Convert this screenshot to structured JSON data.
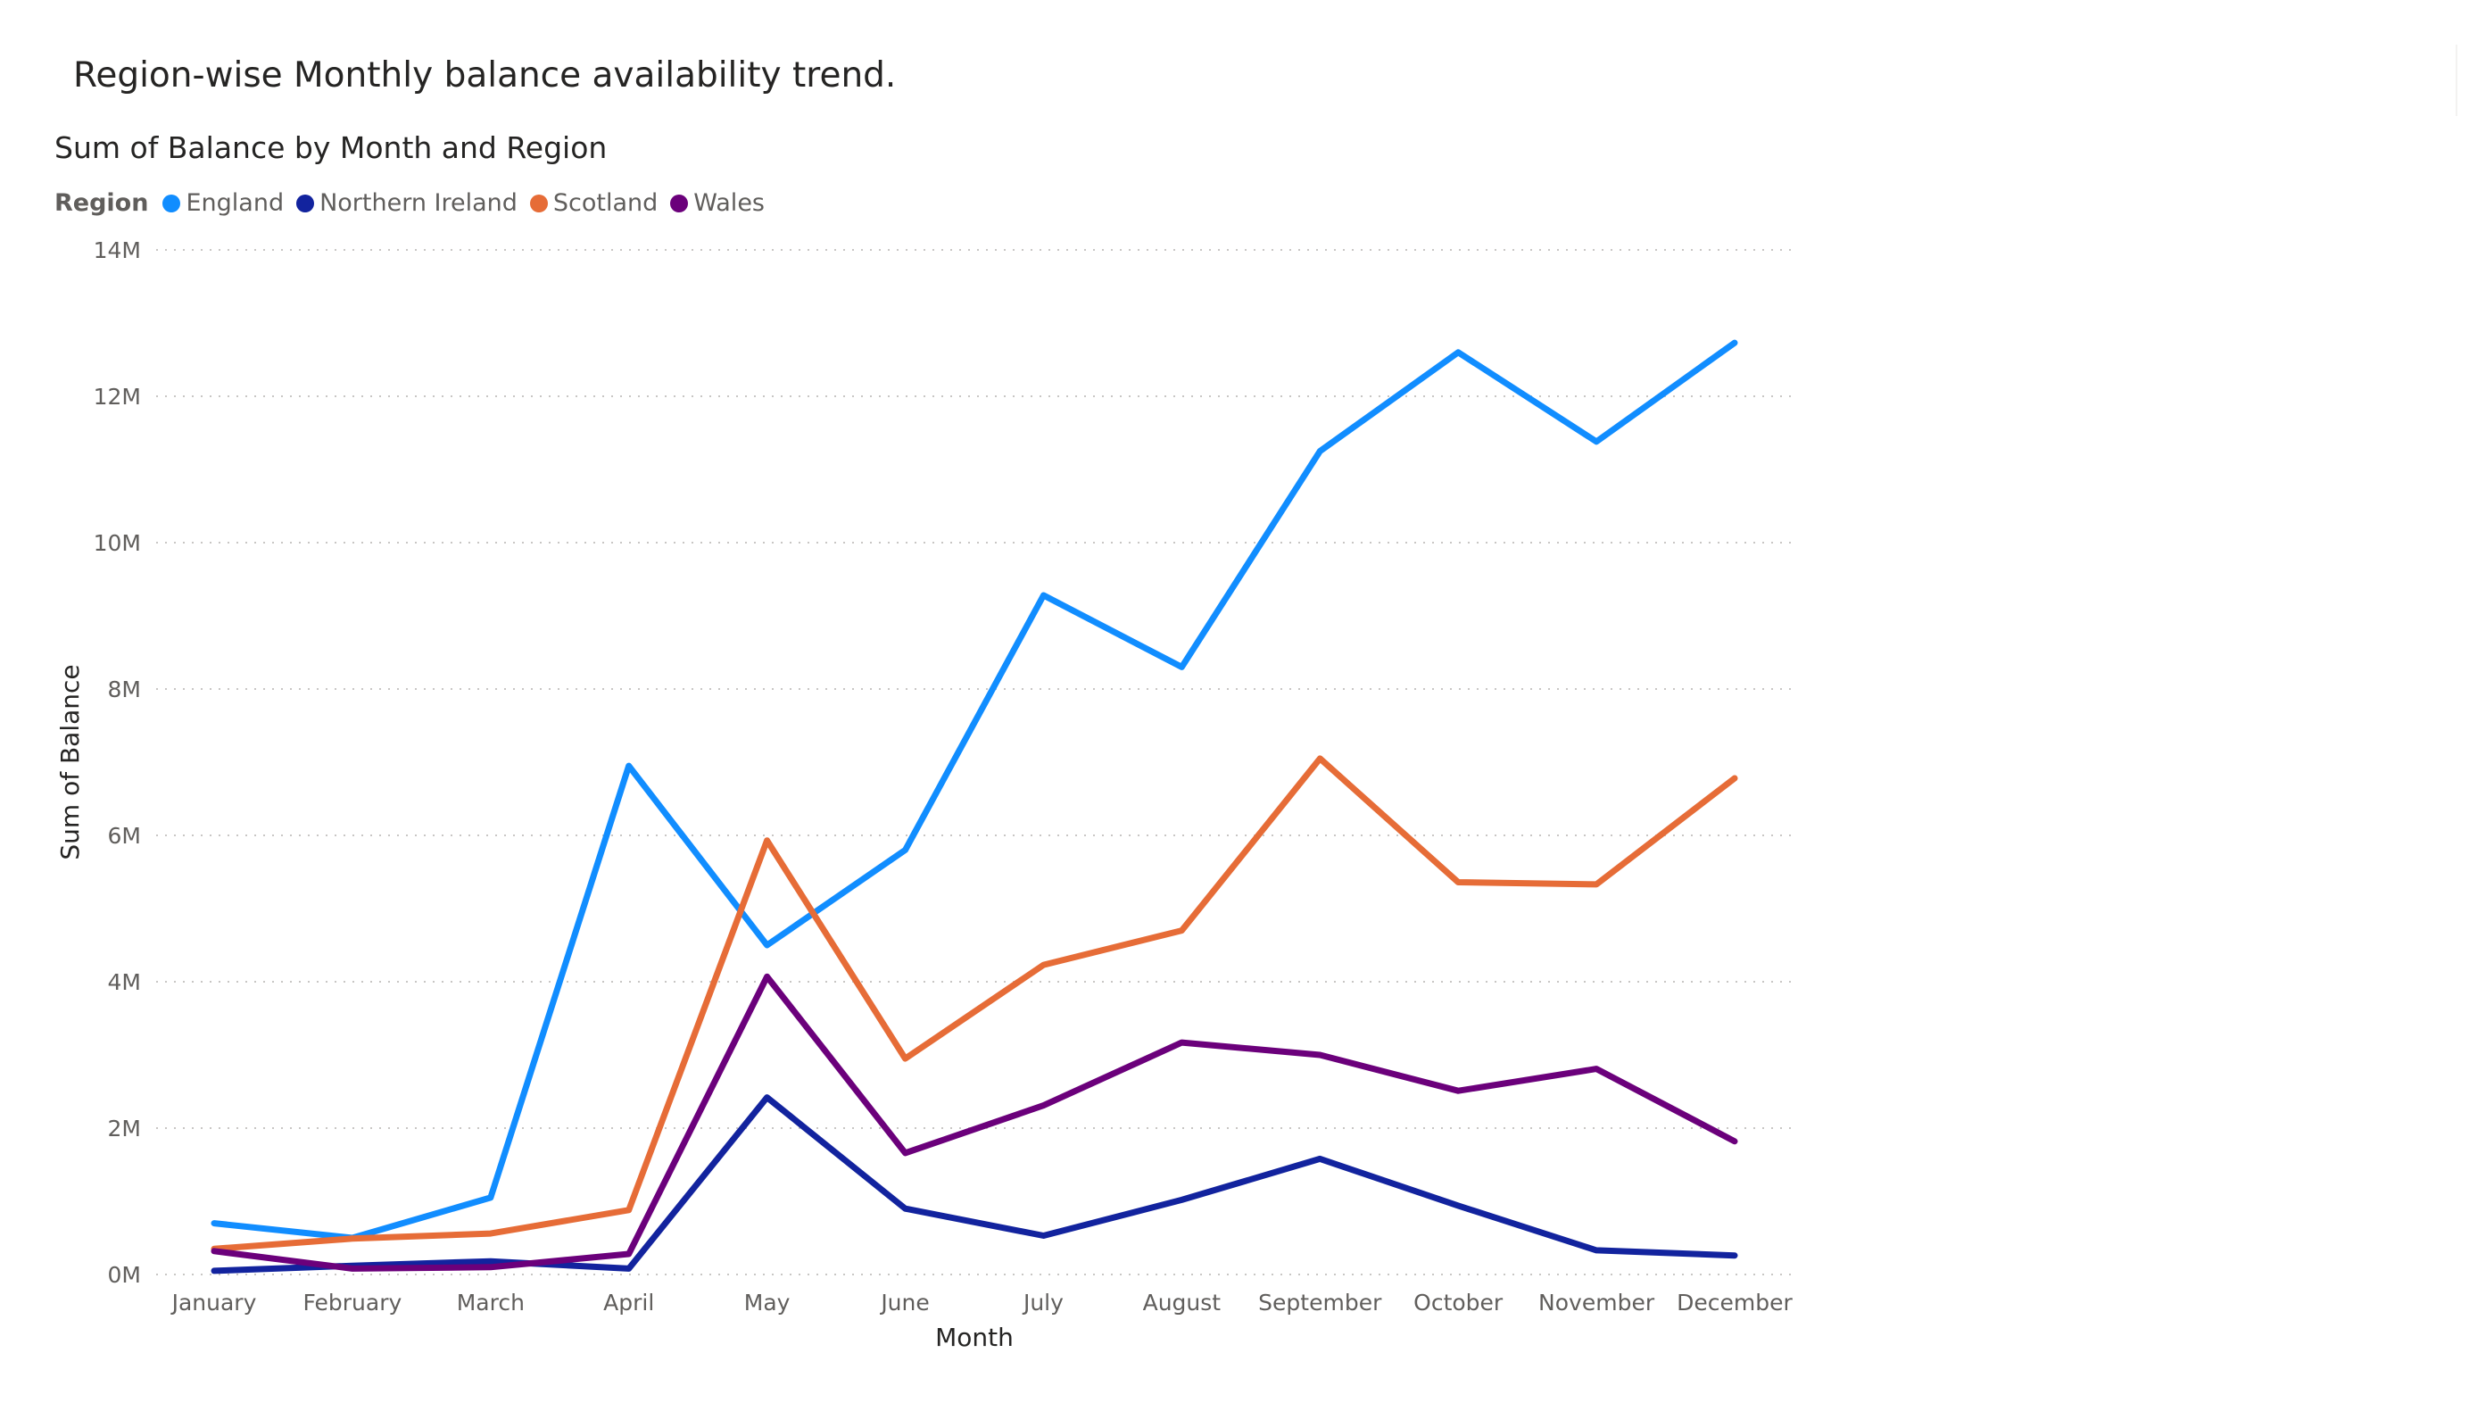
{
  "page": {
    "title": "Region-wise Monthly balance availability trend."
  },
  "legend": {
    "title": "Region"
  },
  "chart_data": {
    "type": "line",
    "title": "Sum of Balance by Month and Region",
    "xlabel": "Month",
    "ylabel": "Sum of Balance",
    "categories": [
      "January",
      "February",
      "March",
      "April",
      "May",
      "June",
      "July",
      "August",
      "September",
      "October",
      "November",
      "December"
    ],
    "ylim": [
      0,
      14000000
    ],
    "yticks": [
      0,
      2000000,
      4000000,
      6000000,
      8000000,
      10000000,
      12000000,
      14000000
    ],
    "ytick_labels": [
      "0M",
      "2M",
      "4M",
      "6M",
      "8M",
      "10M",
      "12M",
      "14M"
    ],
    "grid": "horizontal-dotted",
    "legend_position": "top-left",
    "series": [
      {
        "name": "England",
        "color": "#118DFF",
        "values": [
          700000,
          500000,
          1050000,
          6950000,
          4500000,
          5800000,
          9280000,
          8300000,
          11250000,
          12600000,
          11380000,
          12730000
        ]
      },
      {
        "name": "Northern Ireland",
        "color": "#12239E",
        "values": [
          50000,
          120000,
          180000,
          80000,
          2420000,
          900000,
          530000,
          1020000,
          1580000,
          940000,
          330000,
          260000
        ]
      },
      {
        "name": "Scotland",
        "color": "#E66C37",
        "values": [
          350000,
          490000,
          560000,
          880000,
          5930000,
          2950000,
          4230000,
          4700000,
          7050000,
          5360000,
          5330000,
          6780000
        ]
      },
      {
        "name": "Wales",
        "color": "#6B007B",
        "values": [
          320000,
          80000,
          100000,
          280000,
          4070000,
          1660000,
          2310000,
          3170000,
          3000000,
          2510000,
          2810000,
          1820000
        ]
      }
    ]
  }
}
